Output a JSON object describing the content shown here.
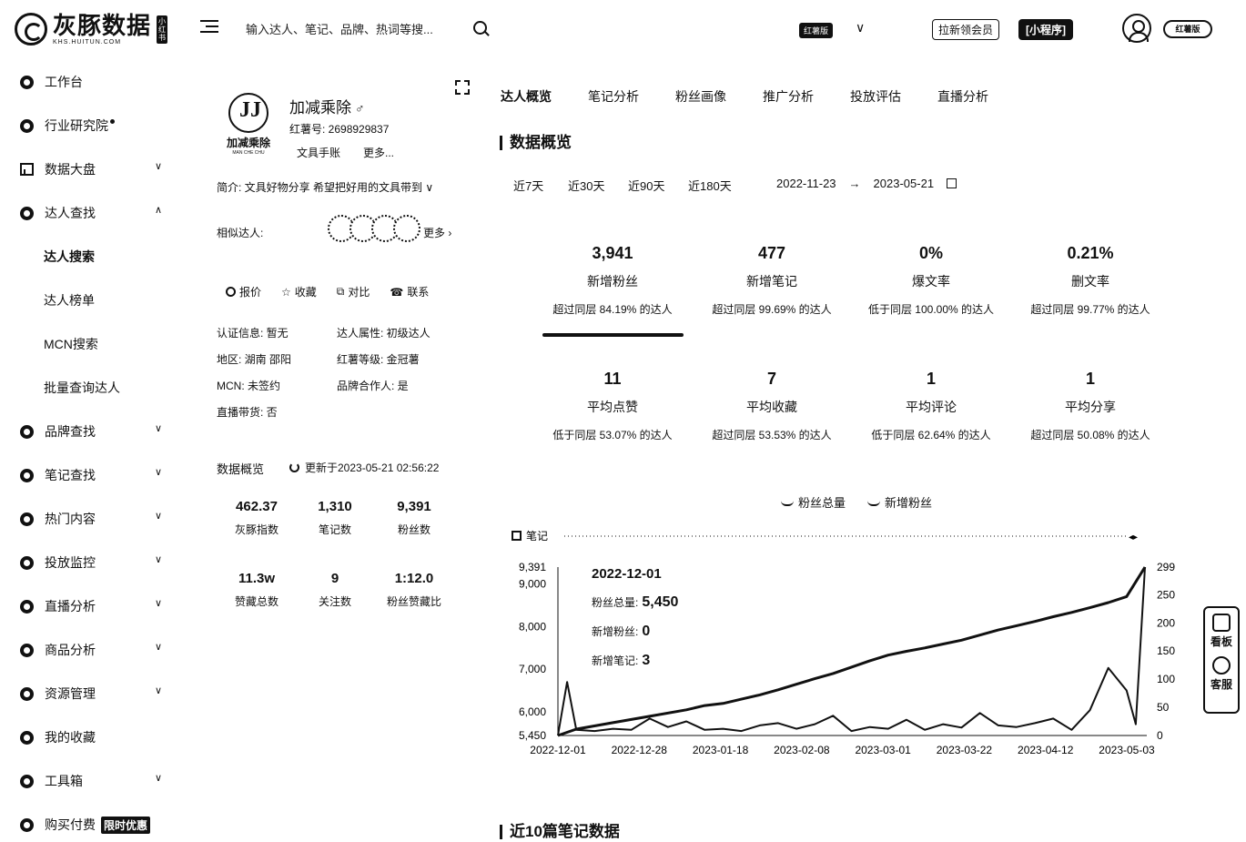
{
  "brand": {
    "name": "灰豚数据",
    "sub": "KHS.HUITUN.COM",
    "badge": "小红书"
  },
  "search": {
    "placeholder": "输入达人、笔记、品牌、热词等搜..."
  },
  "header": {
    "platform": "红薯版",
    "invite_btn": "拉新领会员",
    "app_btn": "[小程序]",
    "user_pill": "红薯版"
  },
  "sidebar": {
    "items": [
      {
        "label": "工作台"
      },
      {
        "label": "行业研究院"
      },
      {
        "label": "数据大盘"
      },
      {
        "label": "达人查找"
      },
      {
        "label": "品牌查找"
      },
      {
        "label": "笔记查找"
      },
      {
        "label": "热门内容"
      },
      {
        "label": "投放监控"
      },
      {
        "label": "直播分析"
      },
      {
        "label": "商品分析"
      },
      {
        "label": "资源管理"
      },
      {
        "label": "我的收藏"
      },
      {
        "label": "工具箱"
      },
      {
        "label": "购买付费"
      }
    ],
    "sub_items": [
      "达人搜索",
      "达人榜单",
      "MCN搜索",
      "批量查询达人"
    ],
    "promo_tag": "限时优惠"
  },
  "profile": {
    "logo_text": "加减乘除",
    "logo_sub": "MAN CHE CHU",
    "name": "加减乘除",
    "gender_icon": "♂",
    "red_id": "红薯号: 2698929837",
    "tag": "文具手账",
    "more": "更多...",
    "bio": "简介: 文具好物分享 希望把好用的文具带到",
    "similar_label": "相似达人:",
    "similar_more": "更多",
    "actions": [
      "报价",
      "收藏",
      "对比",
      "联系"
    ],
    "info": [
      [
        "认证信息: 暂无",
        "达人属性: 初级达人"
      ],
      [
        "地区: 湖南 邵阳",
        "红薯等级: 金冠薯"
      ],
      [
        "MCN: 未签约",
        "品牌合作人: 是"
      ],
      [
        "直播带货: 否",
        ""
      ]
    ],
    "overview_title": "数据概览",
    "update_text": "更新于2023-05-21 02:56:22",
    "stats": [
      {
        "value": "462.37",
        "label": "灰豚指数"
      },
      {
        "value": "1,310",
        "label": "笔记数"
      },
      {
        "value": "9,391",
        "label": "粉丝数"
      },
      {
        "value": "11.3w",
        "label": "赞藏总数"
      },
      {
        "value": "9",
        "label": "关注数"
      },
      {
        "value": "1:12.0",
        "label": "粉丝赞藏比"
      }
    ]
  },
  "tabs": [
    "达人概览",
    "笔记分析",
    "粉丝画像",
    "推广分析",
    "投放评估",
    "直播分析"
  ],
  "overview": {
    "title": "数据概览",
    "ranges": [
      "近7天",
      "近30天",
      "近90天",
      "近180天"
    ],
    "date_from": "2022-11-23",
    "arrow": "→",
    "date_to": "2023-05-21",
    "kpis": [
      {
        "value": "3,941",
        "label": "新增粉丝",
        "sub": "超过同层 84.19% 的达人"
      },
      {
        "value": "477",
        "label": "新增笔记",
        "sub": "超过同层 99.69% 的达人"
      },
      {
        "value": "0%",
        "label": "爆文率",
        "sub": "低于同层 100.00% 的达人"
      },
      {
        "value": "0.21%",
        "label": "删文率",
        "sub": "超过同层 99.77% 的达人"
      },
      {
        "value": "11",
        "label": "平均点赞",
        "sub": "低于同层 53.07% 的达人"
      },
      {
        "value": "7",
        "label": "平均收藏",
        "sub": "超过同层 53.53% 的达人"
      },
      {
        "value": "1",
        "label": "平均评论",
        "sub": "低于同层 62.64% 的达人"
      },
      {
        "value": "1",
        "label": "平均分享",
        "sub": "超过同层 50.08% 的达人"
      }
    ]
  },
  "chart_legend": [
    "粉丝总量",
    "新增粉丝"
  ],
  "chart_notes_label": "笔记",
  "tooltip": {
    "date": "2022-12-01",
    "rows": [
      {
        "label": "粉丝总量:",
        "value": "5,450"
      },
      {
        "label": "新增粉丝:",
        "value": "0"
      },
      {
        "label": "新增笔记:",
        "value": "3"
      }
    ]
  },
  "float_panel": [
    "看板",
    "客服"
  ],
  "recent_title": "近10篇笔记数据",
  "chart_data": {
    "type": "line",
    "x_ticks": [
      "2022-12-01",
      "2022-12-28",
      "2023-01-18",
      "2023-02-08",
      "2023-03-01",
      "2023-03-22",
      "2023-04-12",
      "2023-05-03"
    ],
    "y_left_ticks": [
      "9,391",
      "9,000",
      "8,000",
      "7,000",
      "6,000",
      "5,450"
    ],
    "y_right_ticks": [
      "299",
      "250",
      "200",
      "150",
      "100",
      "50",
      "0"
    ],
    "ylim_left": [
      5450,
      9391
    ],
    "ylim_right": [
      0,
      299
    ],
    "series": [
      {
        "name": "粉丝总量",
        "axis": "left",
        "x": [
          0,
          1,
          3,
          5,
          7,
          8,
          9,
          10,
          11,
          12,
          13,
          14,
          15,
          16,
          17,
          18,
          19,
          20,
          21,
          22,
          23,
          24,
          25,
          26,
          27,
          28,
          29,
          30,
          31,
          32
        ],
        "values": [
          5450,
          5600,
          5750,
          5900,
          6050,
          6150,
          6200,
          6300,
          6400,
          6520,
          6650,
          6780,
          6900,
          7050,
          7200,
          7330,
          7420,
          7500,
          7590,
          7680,
          7800,
          7920,
          8020,
          8120,
          8230,
          8330,
          8440,
          8560,
          8700,
          9391
        ]
      },
      {
        "name": "新增粉丝",
        "axis": "right",
        "x": [
          0,
          0.5,
          1,
          2,
          3,
          4,
          5,
          6,
          7,
          8,
          9,
          10,
          11,
          12,
          13,
          14,
          15,
          16,
          17,
          18,
          19,
          20,
          21,
          22,
          23,
          24,
          25,
          26,
          27,
          28,
          29,
          30,
          31,
          31.5,
          32
        ],
        "values": [
          0,
          95,
          10,
          8,
          12,
          10,
          30,
          15,
          25,
          10,
          12,
          8,
          18,
          22,
          12,
          20,
          35,
          8,
          15,
          12,
          28,
          10,
          20,
          14,
          40,
          18,
          15,
          22,
          30,
          10,
          45,
          120,
          80,
          20,
          299
        ]
      }
    ]
  }
}
